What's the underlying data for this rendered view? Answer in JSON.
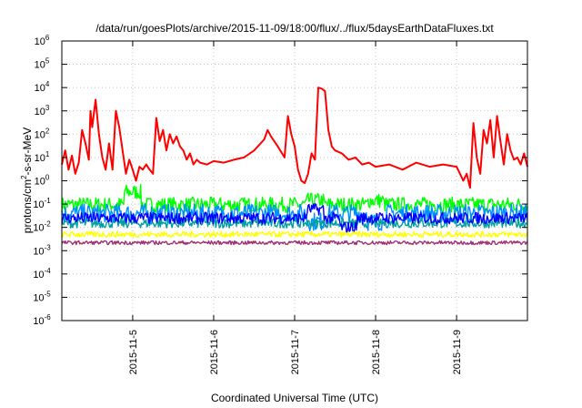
{
  "chart_data": {
    "type": "line",
    "title": "/data/run/goesPlots/archive/2015-11-09/18:00/flux/../flux/5daysEarthDataFluxes.txt",
    "xlabel": "Coordinated Universal Time (UTC)",
    "ylabel_parts": {
      "pre": "protons/cm",
      "sup": "2",
      "post": "-s-sr-MeV"
    },
    "x_axis": {
      "type": "time",
      "range": [
        "2015-11-04 03:00",
        "2015-11-09 21:00"
      ],
      "tick_labels": [
        "2015-11-5",
        "2015-11-6",
        "2015-11-7",
        "2015-11-8",
        "2015-11-9"
      ],
      "tick_times": [
        "2015-11-05 00:00",
        "2015-11-06 00:00",
        "2015-11-07 00:00",
        "2015-11-08 00:00",
        "2015-11-09 00:00"
      ]
    },
    "y_axis": {
      "scale": "log",
      "range": [
        1e-06,
        1000000.0
      ],
      "tick_exponents": [
        -6,
        -5,
        -4,
        -3,
        -2,
        -1,
        0,
        1,
        2,
        3,
        4,
        5,
        6
      ]
    },
    "grid": true,
    "series": [
      {
        "color": "#ff0000",
        "points": [
          [
            "2015-11-04 03:00",
            5
          ],
          [
            "2015-11-04 04:00",
            20
          ],
          [
            "2015-11-04 05:00",
            3
          ],
          [
            "2015-11-04 06:00",
            12
          ],
          [
            "2015-11-04 07:00",
            2
          ],
          [
            "2015-11-04 08:00",
            6
          ],
          [
            "2015-11-04 09:00",
            150
          ],
          [
            "2015-11-04 10:00",
            40
          ],
          [
            "2015-11-04 11:00",
            8
          ],
          [
            "2015-11-04 11:30",
            1000
          ],
          [
            "2015-11-04 12:00",
            200
          ],
          [
            "2015-11-04 13:00",
            3000
          ],
          [
            "2015-11-04 14:00",
            100
          ],
          [
            "2015-11-04 15:00",
            10
          ],
          [
            "2015-11-04 16:00",
            3
          ],
          [
            "2015-11-04 17:00",
            40
          ],
          [
            "2015-11-04 18:00",
            3
          ],
          [
            "2015-11-04 19:00",
            1000
          ],
          [
            "2015-11-04 20:00",
            200
          ],
          [
            "2015-11-04 21:00",
            20
          ],
          [
            "2015-11-04 22:00",
            2
          ],
          [
            "2015-11-04 23:00",
            8
          ],
          [
            "2015-11-05 00:00",
            3
          ],
          [
            "2015-11-05 01:00",
            1
          ],
          [
            "2015-11-05 02:00",
            4
          ],
          [
            "2015-11-05 03:00",
            3
          ],
          [
            "2015-11-05 04:00",
            5
          ],
          [
            "2015-11-05 05:00",
            3
          ],
          [
            "2015-11-05 06:00",
            2
          ],
          [
            "2015-11-05 07:00",
            500
          ],
          [
            "2015-11-05 08:00",
            50
          ],
          [
            "2015-11-05 09:00",
            150
          ],
          [
            "2015-11-05 10:00",
            20
          ],
          [
            "2015-11-05 11:00",
            100
          ],
          [
            "2015-11-05 12:00",
            40
          ],
          [
            "2015-11-05 13:00",
            80
          ],
          [
            "2015-11-05 14:00",
            30
          ],
          [
            "2015-11-05 15:00",
            20
          ],
          [
            "2015-11-05 16:00",
            8
          ],
          [
            "2015-11-05 17:00",
            15
          ],
          [
            "2015-11-05 18:00",
            5
          ],
          [
            "2015-11-05 19:00",
            8
          ],
          [
            "2015-11-05 20:00",
            6
          ],
          [
            "2015-11-05 22:00",
            5
          ],
          [
            "2015-11-06 00:00",
            7
          ],
          [
            "2015-11-06 03:00",
            6
          ],
          [
            "2015-11-06 06:00",
            8
          ],
          [
            "2015-11-06 09:00",
            10
          ],
          [
            "2015-11-06 12:00",
            20
          ],
          [
            "2015-11-06 15:00",
            60
          ],
          [
            "2015-11-06 16:00",
            150
          ],
          [
            "2015-11-06 17:00",
            80
          ],
          [
            "2015-11-06 19:00",
            30
          ],
          [
            "2015-11-06 21:00",
            10
          ],
          [
            "2015-11-06 22:00",
            600
          ],
          [
            "2015-11-06 23:00",
            100
          ],
          [
            "2015-11-07 00:00",
            30
          ],
          [
            "2015-11-07 01:00",
            3
          ],
          [
            "2015-11-07 02:00",
            1
          ],
          [
            "2015-11-07 03:00",
            0.8
          ],
          [
            "2015-11-07 04:00",
            2
          ],
          [
            "2015-11-07 05:00",
            15
          ],
          [
            "2015-11-07 06:00",
            8
          ],
          [
            "2015-11-07 07:00",
            10000
          ],
          [
            "2015-11-07 08:00",
            9000
          ],
          [
            "2015-11-07 09:00",
            7000
          ],
          [
            "2015-11-07 10:00",
            150
          ],
          [
            "2015-11-07 11:00",
            30
          ],
          [
            "2015-11-07 12:00",
            20
          ],
          [
            "2015-11-07 14:00",
            15
          ],
          [
            "2015-11-07 16:00",
            8
          ],
          [
            "2015-11-07 18:00",
            10
          ],
          [
            "2015-11-07 20:00",
            5
          ],
          [
            "2015-11-07 22:00",
            6
          ],
          [
            "2015-11-08 00:00",
            4
          ],
          [
            "2015-11-08 04:00",
            5
          ],
          [
            "2015-11-08 08:00",
            3
          ],
          [
            "2015-11-08 12:00",
            6
          ],
          [
            "2015-11-08 16:00",
            4
          ],
          [
            "2015-11-08 20:00",
            5
          ],
          [
            "2015-11-09 00:00",
            4
          ],
          [
            "2015-11-09 02:00",
            1
          ],
          [
            "2015-11-09 03:00",
            2
          ],
          [
            "2015-11-09 04:00",
            0.5
          ],
          [
            "2015-11-09 05:00",
            300
          ],
          [
            "2015-11-09 06:00",
            10
          ],
          [
            "2015-11-09 07:00",
            2
          ],
          [
            "2015-11-09 08:00",
            150
          ],
          [
            "2015-11-09 09:00",
            40
          ],
          [
            "2015-11-09 10:00",
            400
          ],
          [
            "2015-11-09 11:00",
            10
          ],
          [
            "2015-11-09 12:00",
            600
          ],
          [
            "2015-11-09 13:00",
            50
          ],
          [
            "2015-11-09 14:00",
            5
          ],
          [
            "2015-11-09 15:00",
            100
          ],
          [
            "2015-11-09 16:00",
            20
          ],
          [
            "2015-11-09 17:00",
            8
          ],
          [
            "2015-11-09 18:00",
            10
          ],
          [
            "2015-11-09 19:00",
            5
          ],
          [
            "2015-11-09 20:00",
            15
          ],
          [
            "2015-11-09 21:00",
            4
          ]
        ]
      },
      {
        "color": "#00ff00",
        "level": 0.1,
        "spread_decades": [
          -0.35,
          0.3
        ],
        "events": [
          [
            "2015-11-05 00:00",
            0.35
          ],
          [
            "2015-11-07 06:00",
            0.15
          ],
          [
            "2015-11-08 00:00",
            0.15
          ]
        ]
      },
      {
        "color": "#008fff",
        "level": 0.045,
        "spread_decades": [
          -0.45,
          0.35
        ],
        "events": [
          [
            "2015-11-07 06:00",
            0.02
          ],
          [
            "2015-11-08 00:00",
            0.02
          ]
        ]
      },
      {
        "color": "#00a0a0",
        "level": 0.015,
        "spread_decades": [
          -0.2,
          0.2
        ],
        "events": []
      },
      {
        "color": "#0000ff",
        "level": 0.025,
        "spread_decades": [
          -0.25,
          0.25
        ],
        "events": [
          [
            "2015-11-07 06:00",
            0.06
          ],
          [
            "2015-11-07 16:00",
            0.01
          ]
        ]
      },
      {
        "color": "#ffff00",
        "level": 0.005,
        "spread_decades": [
          -0.12,
          0.12
        ],
        "events": []
      },
      {
        "color": "#a03070",
        "level": 0.0022,
        "spread_decades": [
          -0.08,
          0.08
        ],
        "events": []
      }
    ]
  }
}
